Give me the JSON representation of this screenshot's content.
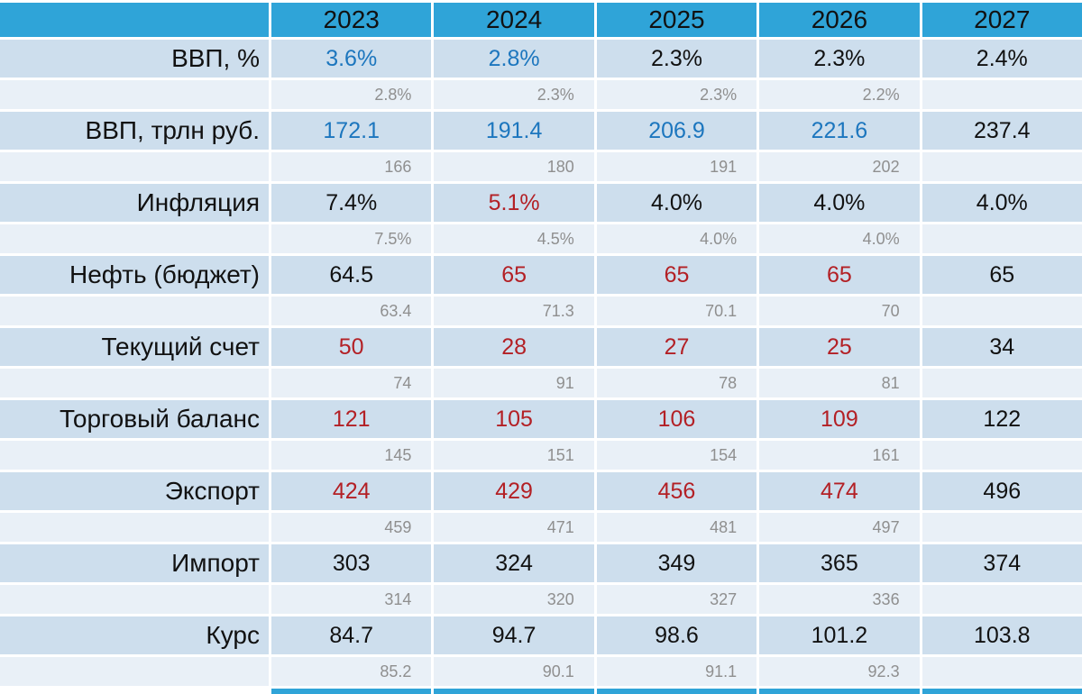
{
  "colors": {
    "header_bg": "#2fa4d8",
    "row_bg": "#cddeed",
    "subrow_bg": "#e9f0f7",
    "text_black": "#111111",
    "text_blue": "#1c76be",
    "text_red": "#b32025",
    "text_gray": "#8f8f8f"
  },
  "chart_data": {
    "type": "table",
    "columns": [
      "",
      "2023",
      "2024",
      "2025",
      "2026",
      "2027"
    ],
    "legend_note_colors": {
      "main_value_row": "current forecast values (black/blue/red as shown)",
      "gray_sub_row": "previous forecast values for 2023-2026, none for 2027"
    },
    "rows": [
      {
        "indicator": "ВВП, %",
        "values": [
          "3.6%",
          "2.8%",
          "2.3%",
          "2.3%",
          "2.4%"
        ],
        "value_colors": [
          "blue",
          "blue",
          "black",
          "black",
          "black"
        ],
        "previous_values": [
          "2.8%",
          "2.3%",
          "2.3%",
          "2.2%",
          null
        ]
      },
      {
        "indicator": "ВВП, трлн руб.",
        "values": [
          "172.1",
          "191.4",
          "206.9",
          "221.6",
          "237.4"
        ],
        "value_colors": [
          "blue",
          "blue",
          "blue",
          "blue",
          "black"
        ],
        "previous_values": [
          "166",
          "180",
          "191",
          "202",
          null
        ]
      },
      {
        "indicator": "Инфляция",
        "values": [
          "7.4%",
          "5.1%",
          "4.0%",
          "4.0%",
          "4.0%"
        ],
        "value_colors": [
          "black",
          "red",
          "black",
          "black",
          "black"
        ],
        "previous_values": [
          "7.5%",
          "4.5%",
          "4.0%",
          "4.0%",
          null
        ]
      },
      {
        "indicator": "Нефть (бюджет)",
        "values": [
          "64.5",
          "65",
          "65",
          "65",
          "65"
        ],
        "value_colors": [
          "black",
          "red",
          "red",
          "red",
          "black"
        ],
        "previous_values": [
          "63.4",
          "71.3",
          "70.1",
          "70",
          null
        ]
      },
      {
        "indicator": "Текущий счет",
        "values": [
          "50",
          "28",
          "27",
          "25",
          "34"
        ],
        "value_colors": [
          "red",
          "red",
          "red",
          "red",
          "black"
        ],
        "previous_values": [
          "74",
          "91",
          "78",
          "81",
          null
        ]
      },
      {
        "indicator": "Торговый баланс",
        "values": [
          "121",
          "105",
          "106",
          "109",
          "122"
        ],
        "value_colors": [
          "red",
          "red",
          "red",
          "red",
          "black"
        ],
        "previous_values": [
          "145",
          "151",
          "154",
          "161",
          null
        ]
      },
      {
        "indicator": "Экспорт",
        "values": [
          "424",
          "429",
          "456",
          "474",
          "496"
        ],
        "value_colors": [
          "red",
          "red",
          "red",
          "red",
          "black"
        ],
        "previous_values": [
          "459",
          "471",
          "481",
          "497",
          null
        ]
      },
      {
        "indicator": "Импорт",
        "values": [
          "303",
          "324",
          "349",
          "365",
          "374"
        ],
        "value_colors": [
          "black",
          "black",
          "black",
          "black",
          "black"
        ],
        "previous_values": [
          "314",
          "320",
          "327",
          "336",
          null
        ]
      },
      {
        "indicator": "Курс",
        "values": [
          "84.7",
          "94.7",
          "98.6",
          "101.2",
          "103.8"
        ],
        "value_colors": [
          "black",
          "black",
          "black",
          "black",
          "black"
        ],
        "previous_values": [
          "85.2",
          "90.1",
          "91.1",
          "92.3",
          null
        ]
      }
    ]
  }
}
